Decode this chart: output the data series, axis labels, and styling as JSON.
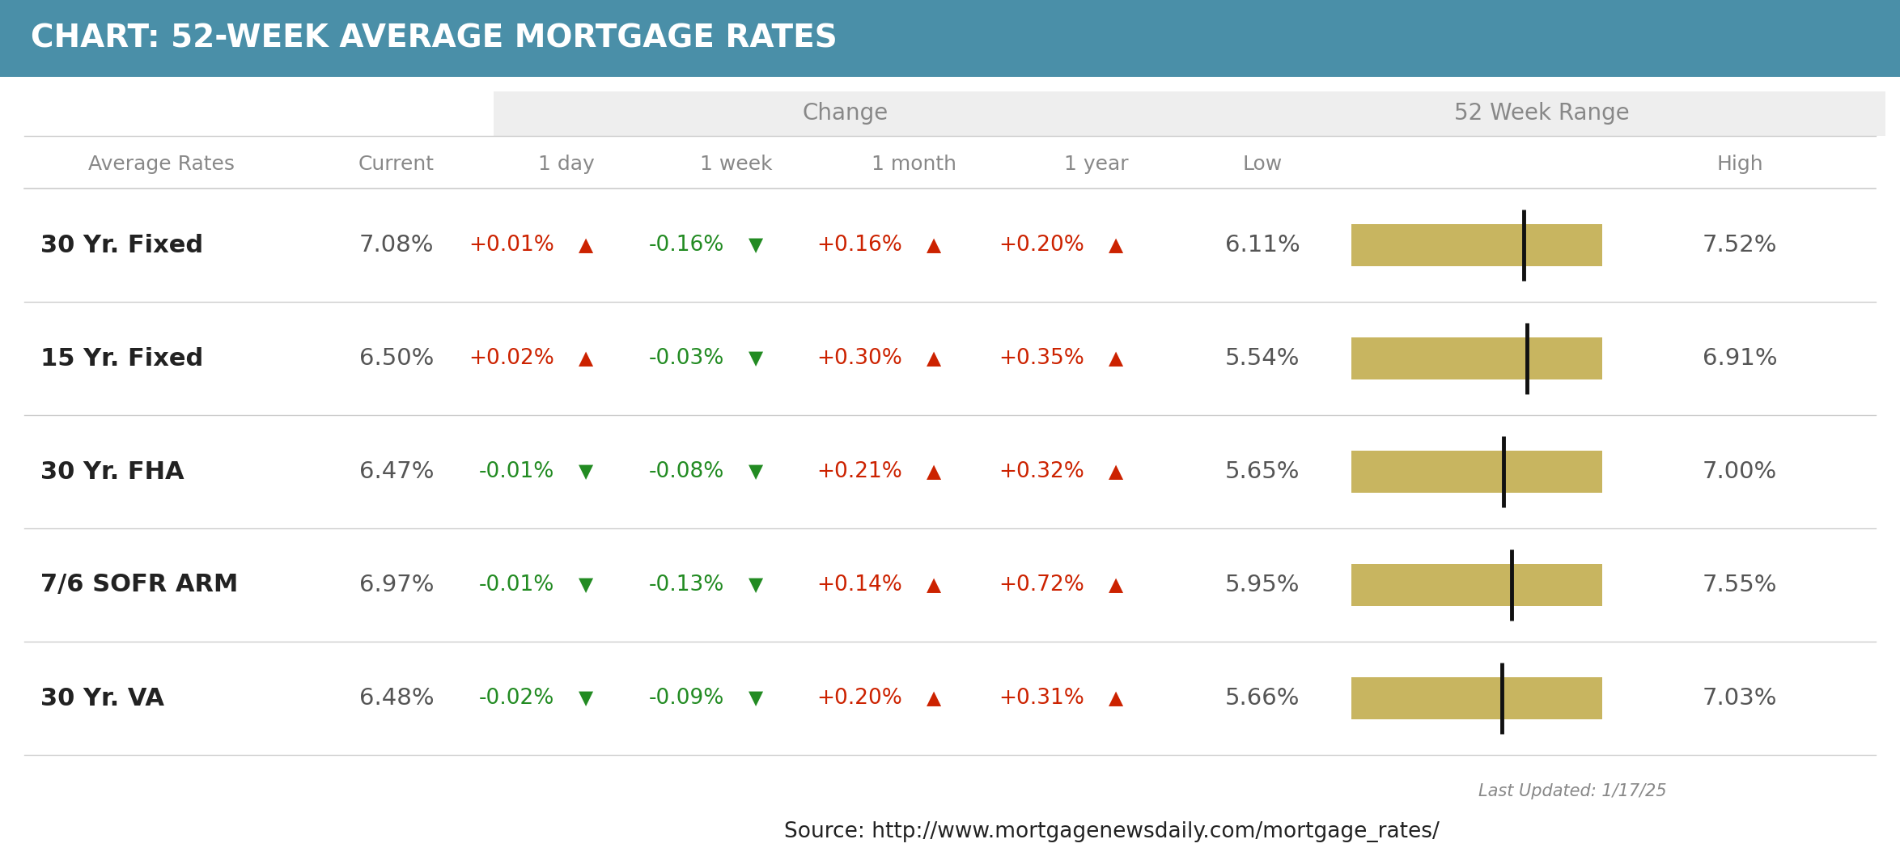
{
  "title": "CHART: 52-WEEK AVERAGE MORTGAGE RATES",
  "title_bg_color": "#4a8fa8",
  "title_text_color": "#ffffff",
  "table_bg_color": "#ffffff",
  "change_header_bg": "#eeeeee",
  "range_header_bg": "#eeeeee",
  "alt_row_bg": "#f5f5f5",
  "source_text": "Source: http://www.mortgagenewsdaily.com/mortgage_rates/",
  "last_updated": "Last Updated: 1/17/25",
  "rows": [
    {
      "label": "30 Yr. Fixed",
      "current": "7.08%",
      "day": "+0.01%",
      "day_up": true,
      "week": "-0.16%",
      "week_up": false,
      "month": "+0.16%",
      "month_up": true,
      "year": "+0.20%",
      "year_up": true,
      "low": "6.11%",
      "high": "7.52%",
      "low_val": 6.11,
      "high_val": 7.52,
      "current_val": 7.08
    },
    {
      "label": "15 Yr. Fixed",
      "current": "6.50%",
      "day": "+0.02%",
      "day_up": true,
      "week": "-0.03%",
      "week_up": false,
      "month": "+0.30%",
      "month_up": true,
      "year": "+0.35%",
      "year_up": true,
      "low": "5.54%",
      "high": "6.91%",
      "low_val": 5.54,
      "high_val": 6.91,
      "current_val": 6.5
    },
    {
      "label": "30 Yr. FHA",
      "current": "6.47%",
      "day": "-0.01%",
      "day_up": false,
      "week": "-0.08%",
      "week_up": false,
      "month": "+0.21%",
      "month_up": true,
      "year": "+0.32%",
      "year_up": true,
      "low": "5.65%",
      "high": "7.00%",
      "low_val": 5.65,
      "high_val": 7.0,
      "current_val": 6.47
    },
    {
      "label": "7/6 SOFR ARM",
      "current": "6.97%",
      "day": "-0.01%",
      "day_up": false,
      "week": "-0.13%",
      "week_up": false,
      "month": "+0.14%",
      "month_up": true,
      "year": "+0.72%",
      "year_up": true,
      "low": "5.95%",
      "high": "7.55%",
      "low_val": 5.95,
      "high_val": 7.55,
      "current_val": 6.97
    },
    {
      "label": "30 Yr. VA",
      "current": "6.48%",
      "day": "-0.02%",
      "day_up": false,
      "week": "-0.09%",
      "week_up": false,
      "month": "+0.20%",
      "month_up": true,
      "year": "+0.31%",
      "year_up": true,
      "low": "5.66%",
      "high": "7.03%",
      "low_val": 5.66,
      "high_val": 7.03,
      "current_val": 6.48
    }
  ],
  "up_color": "#cc2200",
  "down_color": "#228B22",
  "bar_color": "#c8b560",
  "bar_bg_color": "#dddddd",
  "marker_color": "#111111",
  "label_color": "#555555",
  "subheader_color": "#888888",
  "bold_label_color": "#222222",
  "divider_color": "#cccccc"
}
